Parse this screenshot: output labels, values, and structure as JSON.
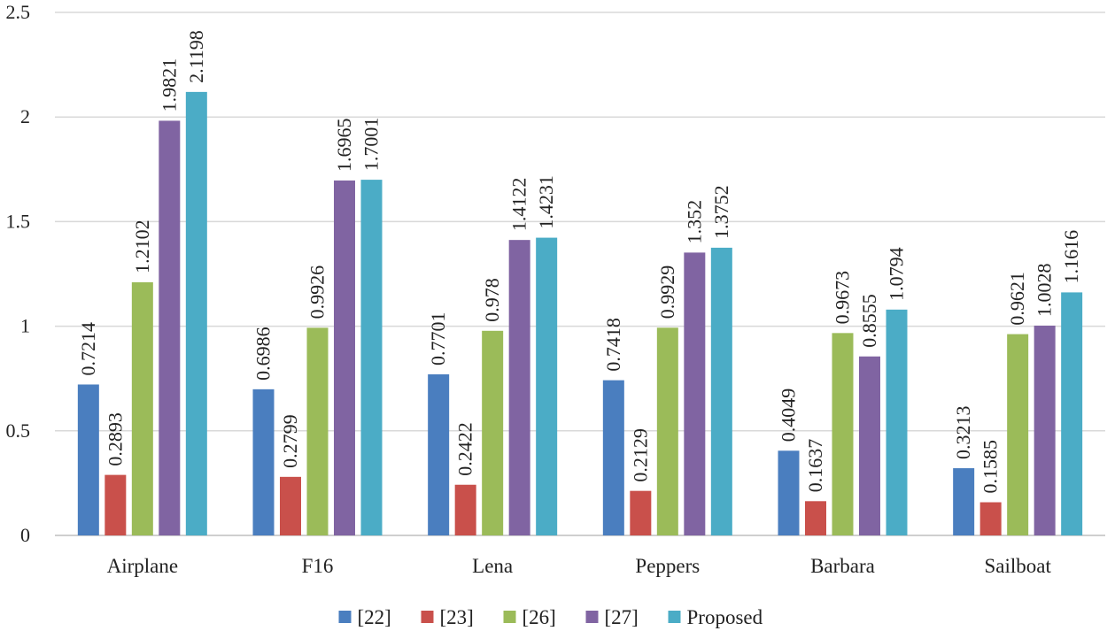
{
  "chart_data": {
    "type": "bar",
    "categories": [
      "Airplane",
      "F16",
      "Lena",
      "Peppers",
      "Barbara",
      "Sailboat"
    ],
    "series": [
      {
        "name": "[22]",
        "color": "#4a7ebf",
        "values": [
          0.7214,
          0.6986,
          0.7701,
          0.7418,
          0.4049,
          0.3213
        ],
        "labels": [
          "0.7214",
          "0.6986",
          "0.7701",
          "0.7418",
          "0.4049",
          "0.3213"
        ]
      },
      {
        "name": "[23]",
        "color": "#c9504b",
        "values": [
          0.2893,
          0.2799,
          0.2422,
          0.2129,
          0.1637,
          0.1585
        ],
        "labels": [
          "0.2893",
          "0.2799",
          "0.2422",
          "0.2129",
          "0.1637",
          "0.1585"
        ]
      },
      {
        "name": "[26]",
        "color": "#9bbb59",
        "values": [
          1.2102,
          0.9926,
          0.978,
          0.9929,
          0.9673,
          0.9621
        ],
        "labels": [
          "1.2102",
          "0.9926",
          "0.978",
          "0.9929",
          "0.9673",
          "0.9621"
        ]
      },
      {
        "name": "[27]",
        "color": "#8064a2",
        "values": [
          1.9821,
          1.6965,
          1.4122,
          1.352,
          0.8555,
          1.0028
        ],
        "labels": [
          "1.9821",
          "1.6965",
          "1.4122",
          "1.352",
          "0.8555",
          "1.0028"
        ]
      },
      {
        "name": "Proposed",
        "color": "#4bacc6",
        "values": [
          2.1198,
          1.7001,
          1.4231,
          1.3752,
          1.0794,
          1.1616
        ],
        "labels": [
          "2.1198",
          "1.7001",
          "1.4231",
          "1.3752",
          "1.0794",
          "1.1616"
        ]
      }
    ],
    "yticks": [
      "0",
      "0.5",
      "1",
      "1.5",
      "2",
      "2.5"
    ],
    "ylim": [
      0,
      2.5
    ],
    "grid": true,
    "legend_position": "bottom"
  }
}
